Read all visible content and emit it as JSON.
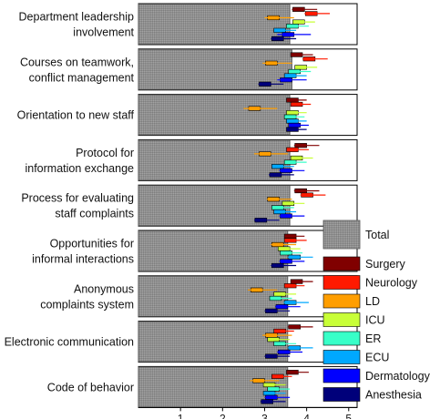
{
  "chart_data": {
    "type": "bar",
    "orientation": "horizontal",
    "categories": [
      [
        "Department leadership",
        "involvement"
      ],
      [
        "Courses on teamwork,",
        "conflict management"
      ],
      [
        "Orientation to new staff"
      ],
      [
        "Protocol for",
        "information exchange"
      ],
      [
        "Process for evaluating",
        "staff complaints"
      ],
      [
        "Opportunities for",
        "informal interactions"
      ],
      [
        "Anonymous",
        "complaints system"
      ],
      [
        "Electronic communication"
      ],
      [
        "Code of behavior"
      ]
    ],
    "xlim": [
      0,
      5.2
    ],
    "xticks": [
      1,
      2,
      3,
      4,
      5
    ],
    "tick_labels": [
      "1",
      "2",
      "3",
      "4",
      "5"
    ],
    "total_label": "Total",
    "total_color": "#8f8f8f",
    "total_values": [
      3.6,
      3.65,
      3.6,
      3.6,
      3.6,
      3.55,
      3.55,
      3.55,
      3.55
    ],
    "series": [
      {
        "name": "Surgery",
        "color": "#800000",
        "values": [
          3.95,
          3.9,
          3.8,
          4.0,
          4.0,
          3.75,
          3.9,
          3.85,
          3.8
        ],
        "errors": [
          0.3,
          0.25,
          0.2,
          0.3,
          0.3,
          0.2,
          0.25,
          0.3,
          0.25
        ]
      },
      {
        "name": "Neurology",
        "color": "#ff1a00",
        "values": [
          4.25,
          4.2,
          3.9,
          3.8,
          4.15,
          3.75,
          3.75,
          3.5,
          3.45
        ],
        "errors": [
          0.3,
          0.3,
          0.2,
          0.25,
          0.3,
          0.25,
          0.2,
          0.2,
          0.2
        ]
      },
      {
        "name": "LD",
        "color": "#ff9e00",
        "values": [
          3.35,
          3.3,
          2.9,
          3.15,
          3.35,
          3.45,
          2.95,
          3.3,
          3.0
        ],
        "errors": [
          0.35,
          0.35,
          0.4,
          0.4,
          0.3,
          0.3,
          0.35,
          0.35,
          0.35
        ]
      },
      {
        "name": "ICU",
        "color": "#c8ff37",
        "values": [
          3.95,
          4.0,
          3.8,
          3.9,
          3.7,
          3.6,
          3.5,
          3.35,
          3.25
        ],
        "errors": [
          0.25,
          0.25,
          0.2,
          0.25,
          0.25,
          0.25,
          0.25,
          0.25,
          0.25
        ]
      },
      {
        "name": "ER",
        "color": "#38ffc8",
        "values": [
          3.8,
          3.85,
          3.75,
          3.75,
          3.45,
          3.65,
          3.4,
          3.5,
          3.35
        ],
        "errors": [
          0.25,
          0.25,
          0.2,
          0.25,
          0.25,
          0.25,
          0.25,
          0.25,
          0.25
        ]
      },
      {
        "name": "ECU",
        "color": "#00a8ff",
        "values": [
          3.5,
          3.75,
          3.8,
          3.45,
          3.5,
          3.85,
          3.75,
          3.85,
          3.25
        ],
        "errors": [
          0.25,
          0.25,
          0.2,
          0.25,
          0.25,
          0.3,
          0.3,
          0.3,
          0.25
        ]
      },
      {
        "name": "Dermatology",
        "color": "#0000ff",
        "values": [
          3.7,
          3.65,
          3.85,
          3.65,
          3.65,
          3.65,
          3.55,
          3.6,
          3.3
        ],
        "errors": [
          0.4,
          0.35,
          0.2,
          0.3,
          0.3,
          0.3,
          0.3,
          0.3,
          0.3
        ]
      },
      {
        "name": "Anesthesia",
        "color": "#00007a",
        "values": [
          3.45,
          3.15,
          3.8,
          3.4,
          3.05,
          3.45,
          3.3,
          3.3,
          3.2
        ],
        "errors": [
          0.3,
          0.3,
          0.2,
          0.3,
          0.3,
          0.3,
          0.3,
          0.3,
          0.3
        ]
      }
    ],
    "legend_position": "bottom-right",
    "grid": false
  }
}
